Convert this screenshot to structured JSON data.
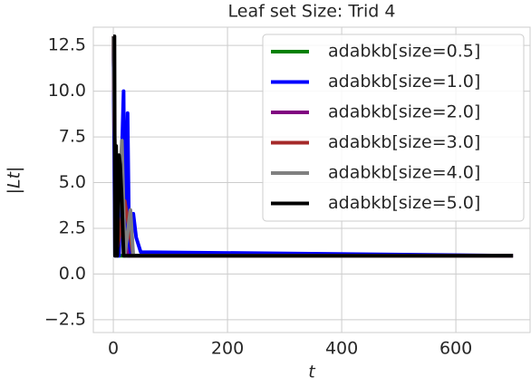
{
  "chart_data": {
    "type": "line",
    "title": "Leaf set Size: Trid 4",
    "xlabel": "t",
    "ylabel": "|Lt|",
    "xlim": [
      -35,
      730
    ],
    "xticks": [
      0,
      200,
      400,
      600
    ],
    "ylim": [
      -3.2,
      13.5
    ],
    "yticks": [
      {
        "value": -2.5,
        "label": "−2.5"
      },
      {
        "value": 0,
        "label": "0.0"
      },
      2.5,
      {
        "value": 5,
        "label": "5.0"
      },
      7.5,
      {
        "value": 10,
        "label": "10.0"
      },
      12.5
    ],
    "grid": true,
    "legend": "upper right",
    "series": [
      {
        "name": "adabkb[size=0.5]",
        "color": "#008000",
        "x": [
          0,
          5,
          700
        ],
        "values": [
          13,
          1,
          1
        ]
      },
      {
        "name": "adabkb[size=1.0]",
        "color": "#0000ff",
        "x": [
          0,
          3,
          10,
          18,
          20,
          25,
          28,
          35,
          40,
          48,
          700
        ],
        "values": [
          13,
          1,
          1,
          10,
          1,
          8.8,
          1,
          3.3,
          2,
          1.2,
          1
        ]
      },
      {
        "name": "adabkb[size=2.0]",
        "color": "#800080",
        "x": [
          0,
          5,
          15,
          25,
          700
        ],
        "values": [
          13,
          1,
          3,
          1,
          1
        ]
      },
      {
        "name": "adabkb[size=3.0]",
        "color": "#a52a2a",
        "x": [
          0,
          5,
          20,
          30,
          35,
          700
        ],
        "values": [
          13,
          1,
          4,
          2,
          1,
          1
        ]
      },
      {
        "name": "adabkb[size=4.0]",
        "color": "#808080",
        "x": [
          0,
          5,
          15,
          20,
          30,
          35,
          700
        ],
        "values": [
          13,
          1,
          7.3,
          1,
          3.5,
          1,
          1
        ]
      },
      {
        "name": "adabkb[size=5.0]",
        "color": "#000000",
        "x": [
          0,
          2,
          3,
          5,
          7,
          10,
          12,
          15,
          18,
          700
        ],
        "values": [
          13,
          13,
          1,
          7,
          1,
          6.5,
          6,
          4,
          1,
          1
        ]
      }
    ]
  }
}
